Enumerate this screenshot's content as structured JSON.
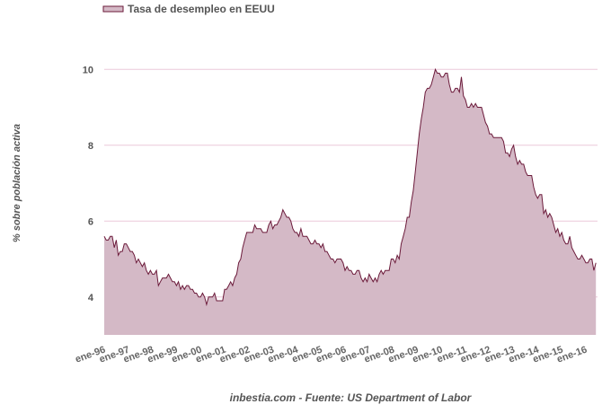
{
  "chart_data": {
    "type": "area",
    "legend": "Tasa de desempleo en EEUU",
    "legend_position": "top-left",
    "ylabel": "% sobre población activa",
    "source": "inbestia.com - Fuente: US Department of Labor",
    "ylim": [
      3,
      11
    ],
    "yticks": [
      4,
      6,
      8,
      10
    ],
    "grid": true,
    "x_start": "1996-01",
    "x_frequency": "monthly",
    "xtick_labels": [
      "ene-96",
      "ene-97",
      "ene-98",
      "ene-99",
      "ene-00",
      "ene-01",
      "ene-02",
      "ene-03",
      "ene-04",
      "ene-05",
      "ene-06",
      "ene-07",
      "ene-08",
      "ene-09",
      "ene-10",
      "ene-11",
      "ene-12",
      "ene-13",
      "ene-14",
      "ene-15",
      "ene-16"
    ],
    "values": [
      5.6,
      5.5,
      5.5,
      5.6,
      5.6,
      5.3,
      5.5,
      5.1,
      5.2,
      5.2,
      5.4,
      5.4,
      5.3,
      5.2,
      5.2,
      5.1,
      4.9,
      5.0,
      4.9,
      4.8,
      4.9,
      4.7,
      4.6,
      4.7,
      4.6,
      4.6,
      4.7,
      4.3,
      4.4,
      4.5,
      4.5,
      4.5,
      4.6,
      4.5,
      4.4,
      4.4,
      4.3,
      4.4,
      4.2,
      4.3,
      4.2,
      4.3,
      4.3,
      4.2,
      4.2,
      4.1,
      4.1,
      4.0,
      4.0,
      4.1,
      4.0,
      3.8,
      4.0,
      4.0,
      4.0,
      4.1,
      3.9,
      3.9,
      3.9,
      3.9,
      4.2,
      4.2,
      4.3,
      4.4,
      4.3,
      4.5,
      4.6,
      4.9,
      5.0,
      5.3,
      5.5,
      5.7,
      5.7,
      5.7,
      5.7,
      5.9,
      5.8,
      5.8,
      5.8,
      5.7,
      5.7,
      5.7,
      5.9,
      6.0,
      5.8,
      5.9,
      5.9,
      6.0,
      6.1,
      6.3,
      6.2,
      6.1,
      6.1,
      6.0,
      5.8,
      5.7,
      5.7,
      5.6,
      5.8,
      5.6,
      5.6,
      5.6,
      5.5,
      5.4,
      5.4,
      5.5,
      5.4,
      5.4,
      5.3,
      5.4,
      5.2,
      5.2,
      5.1,
      5.0,
      5.0,
      4.9,
      5.0,
      5.0,
      5.0,
      4.9,
      4.7,
      4.8,
      4.7,
      4.7,
      4.6,
      4.6,
      4.7,
      4.7,
      4.5,
      4.4,
      4.5,
      4.4,
      4.6,
      4.5,
      4.4,
      4.5,
      4.4,
      4.6,
      4.7,
      4.6,
      4.7,
      4.7,
      4.7,
      5.0,
      5.0,
      4.9,
      5.1,
      5.0,
      5.4,
      5.6,
      5.8,
      6.1,
      6.1,
      6.5,
      6.8,
      7.3,
      7.8,
      8.3,
      8.7,
      9.0,
      9.4,
      9.5,
      9.5,
      9.6,
      9.8,
      10.0,
      9.9,
      9.9,
      9.8,
      9.8,
      9.9,
      9.9,
      9.6,
      9.4,
      9.4,
      9.5,
      9.5,
      9.4,
      9.8,
      9.3,
      9.2,
      9.0,
      9.0,
      9.1,
      9.0,
      9.1,
      9.0,
      9.0,
      9.0,
      8.8,
      8.6,
      8.5,
      8.3,
      8.3,
      8.2,
      8.2,
      8.2,
      8.2,
      8.2,
      8.1,
      7.8,
      7.8,
      7.7,
      7.9,
      8.0,
      7.7,
      7.5,
      7.6,
      7.5,
      7.5,
      7.3,
      7.2,
      7.2,
      7.2,
      6.9,
      6.7,
      6.6,
      6.7,
      6.7,
      6.2,
      6.3,
      6.1,
      6.2,
      6.1,
      5.9,
      5.7,
      5.8,
      5.6,
      5.7,
      5.5,
      5.4,
      5.4,
      5.6,
      5.3,
      5.2,
      5.1,
      5.0,
      5.0,
      5.1,
      5.0,
      4.9,
      4.9,
      5.0,
      5.0,
      4.7,
      4.9
    ],
    "colors": {
      "fill": "#d4b9c6",
      "line": "#6b1a3a",
      "grid": "#ecc8da"
    }
  }
}
